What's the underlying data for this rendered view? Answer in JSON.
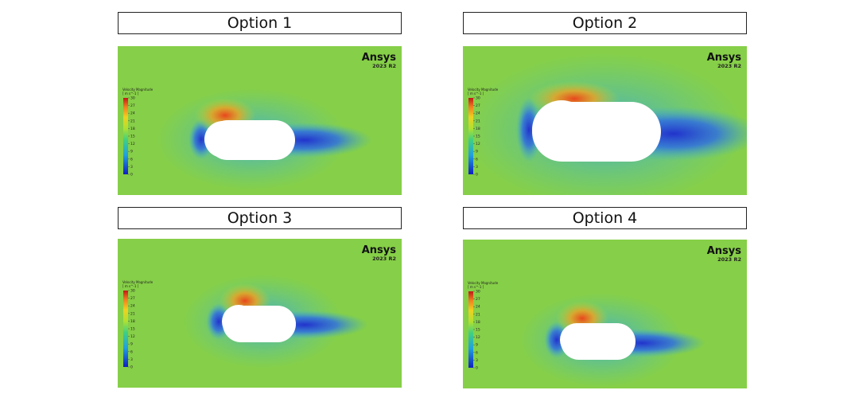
{
  "panels": [
    {
      "title": "Option 1",
      "brand": "Ansys",
      "version": "2023 R2",
      "legend": {
        "title": "Velocity Magnitude",
        "unit": "[ m s^-1 ]",
        "ticks": [
          0,
          3,
          6,
          9,
          12,
          15,
          18,
          21,
          24,
          27,
          30
        ]
      }
    },
    {
      "title": "Option 2",
      "brand": "Ansys",
      "version": "2023 R2",
      "legend": {
        "title": "Velocity Magnitude",
        "unit": "[ m s^-1 ]",
        "ticks": [
          0,
          3,
          6,
          9,
          12,
          15,
          18,
          21,
          24,
          27,
          30
        ]
      }
    },
    {
      "title": "Option 3",
      "brand": "Ansys",
      "version": "2023 R2",
      "legend": {
        "title": "Velocity Magnitude",
        "unit": "[ m s^-1 ]",
        "ticks": [
          0,
          3,
          6,
          9,
          12,
          15,
          18,
          21,
          24,
          27,
          30
        ]
      }
    },
    {
      "title": "Option 4",
      "brand": "Ansys",
      "version": "2023 R2",
      "legend": {
        "title": "Velocity Magnitude",
        "unit": "[ m s^-1 ]",
        "ticks": [
          0,
          3,
          6,
          9,
          12,
          15,
          18,
          21,
          24,
          27,
          30
        ]
      }
    }
  ]
}
